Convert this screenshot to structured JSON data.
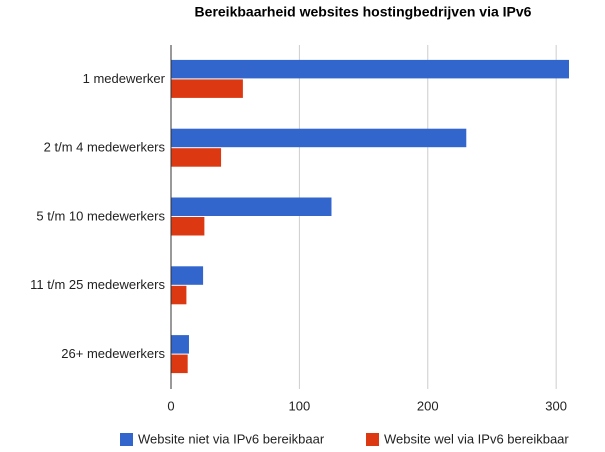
{
  "chart_data": {
    "type": "bar",
    "orientation": "horizontal",
    "title": "Bereikbaarheid websites hostingbedrijven via IPv6",
    "categories": [
      "1 medewerker",
      "2 t/m 4 medewerkers",
      "5 t/m 10 medewerkers",
      "11 t/m 25 medewerkers",
      "26+ medewerkers"
    ],
    "series": [
      {
        "name": "Website niet via IPv6 bereikbaar",
        "color": "#3366cc",
        "values": [
          310,
          230,
          125,
          25,
          14
        ]
      },
      {
        "name": "Website wel via IPv6 bereikbaar",
        "color": "#dc3912",
        "values": [
          56,
          39,
          26,
          12,
          13
        ]
      }
    ],
    "xlim": [
      0,
      310
    ],
    "xticks": [
      0,
      100,
      200,
      300
    ],
    "grid": true,
    "legend": "bottom"
  }
}
